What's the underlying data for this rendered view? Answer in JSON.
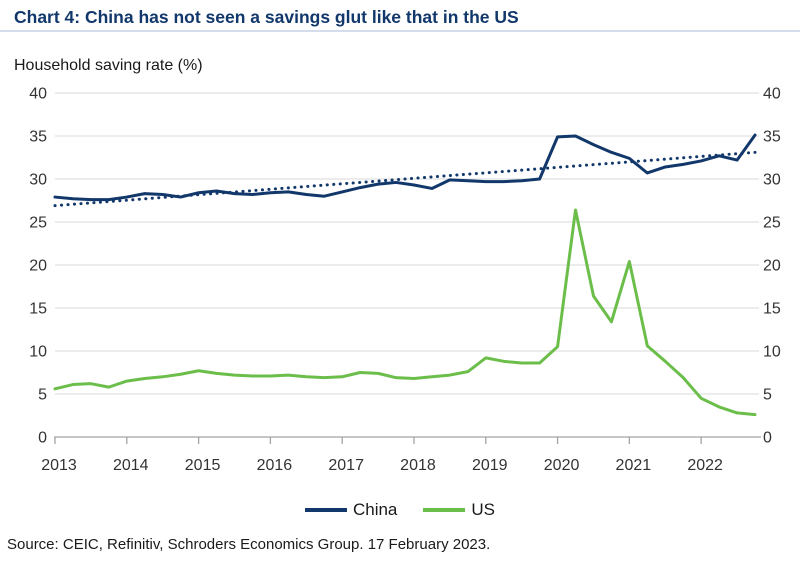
{
  "page": {
    "title": "Chart 4: China has not seen a savings glut like that in the US",
    "subtitle": "Household saving rate (%)",
    "source": "Source: CEIC, Refinitiv, Schroders Economics Group. 17 February 2023."
  },
  "colors": {
    "navy": "#12386B",
    "green": "#6CBE4B",
    "grid": "#D9D9D9",
    "axis": "#A3A3A3",
    "tick_text": "#333333",
    "title_text": "#12386B",
    "divider": "#D5DDEC"
  },
  "chart_data": {
    "type": "line",
    "title": "Chart 4: China has not seen a savings glut like that in the US",
    "ylabel": "Household saving rate (%)",
    "xlabel": "",
    "ylim": [
      0,
      40
    ],
    "y_ticks": [
      0,
      5,
      10,
      15,
      20,
      25,
      30,
      35,
      40
    ],
    "y_axis_sides": "both",
    "grid": true,
    "legend_position": "bottom",
    "x_frequency": "quarterly",
    "x_range": [
      "2013-Q1",
      "2022-Q4"
    ],
    "x_tick_labels": [
      "2013",
      "2014",
      "2015",
      "2016",
      "2017",
      "2018",
      "2019",
      "2020",
      "2021",
      "2022"
    ],
    "series": [
      {
        "name": "China",
        "color": "#12386B",
        "line_style": "solid",
        "values": [
          27.9,
          27.7,
          27.6,
          27.6,
          27.9,
          28.3,
          28.2,
          27.9,
          28.4,
          28.6,
          28.3,
          28.2,
          28.4,
          28.5,
          28.2,
          28.0,
          28.5,
          29.0,
          29.4,
          29.6,
          29.3,
          28.9,
          29.9,
          29.8,
          29.7,
          29.7,
          29.8,
          30.0,
          34.9,
          35.0,
          34.0,
          33.1,
          32.4,
          30.7,
          31.4,
          31.7,
          32.1,
          32.7,
          32.2,
          35.1
        ]
      },
      {
        "name": "US",
        "color": "#6CBE4B",
        "line_style": "solid",
        "values": [
          5.6,
          6.1,
          6.2,
          5.8,
          6.5,
          6.8,
          7.0,
          7.3,
          7.7,
          7.4,
          7.2,
          7.1,
          7.1,
          7.2,
          7.0,
          6.9,
          7.0,
          7.5,
          7.4,
          6.9,
          6.8,
          7.0,
          7.2,
          7.6,
          9.2,
          8.8,
          8.6,
          8.6,
          10.5,
          26.4,
          16.4,
          13.4,
          20.4,
          10.6,
          8.8,
          6.9,
          4.5,
          3.5,
          2.8,
          2.6
        ]
      }
    ],
    "trend_line": {
      "series": "China",
      "style": "dotted",
      "color": "#12386B",
      "start_value": 26.9,
      "end_value": 33.1
    }
  }
}
